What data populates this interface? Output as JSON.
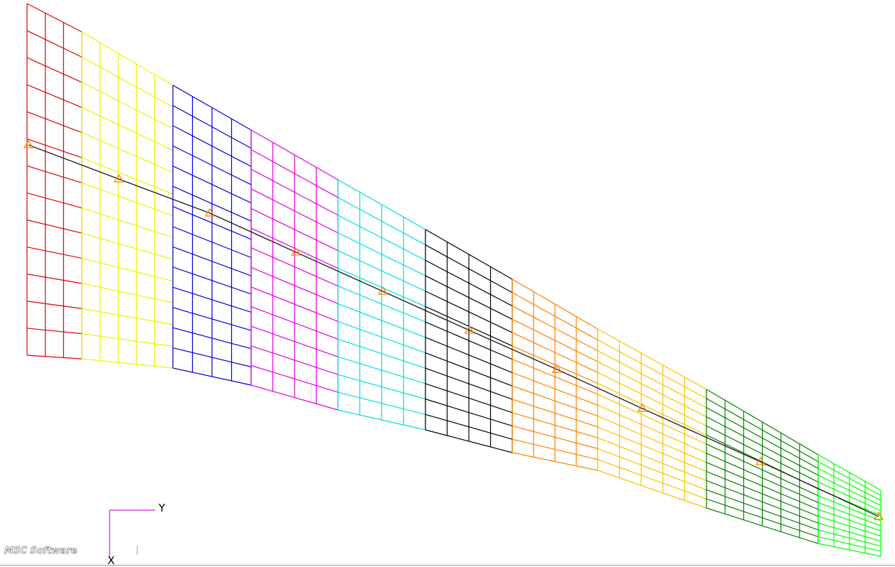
{
  "triad": {
    "y_label": "Y",
    "x_label": "X"
  },
  "logo": "MSC Software"
}
